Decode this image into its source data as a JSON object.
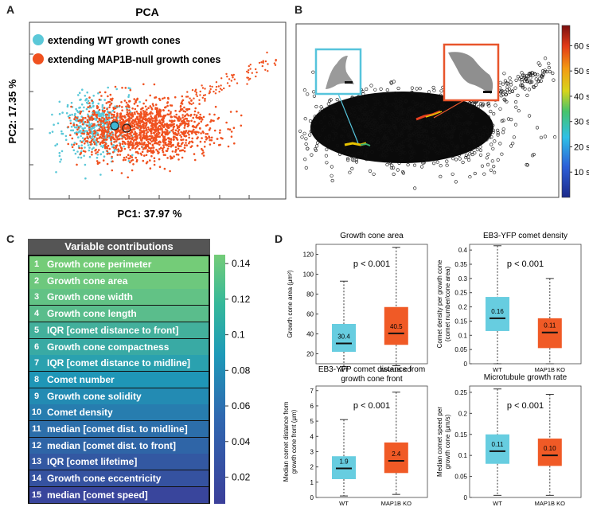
{
  "panels": {
    "a": "A",
    "b": "B",
    "c": "C",
    "d": "D"
  },
  "pca": {
    "title": "PCA",
    "xlabel": "PC1: 37.97 %",
    "ylabel": "PC2: 17.35 %",
    "legend": [
      {
        "label": "extending WT growth cones",
        "color": "#5bc8d8"
      },
      {
        "label": "extending MAP1B-null growth cones",
        "color": "#f0511f"
      }
    ]
  },
  "timebar": {
    "ticks": [
      "60 s",
      "50 s",
      "40 s",
      "30 s",
      "20 s",
      "10 s"
    ],
    "tick_values": [
      60,
      50,
      40,
      30,
      20,
      10
    ],
    "range": [
      0,
      68
    ]
  },
  "contributions": {
    "title": "Variable contributions",
    "rows": [
      {
        "n": "1",
        "label": "Growth cone perimeter",
        "value": 0.145
      },
      {
        "n": "2",
        "label": "Growth cone area",
        "value": 0.14
      },
      {
        "n": "3",
        "label": "Growth cone width",
        "value": 0.133
      },
      {
        "n": "4",
        "label": "Growth cone length",
        "value": 0.127
      },
      {
        "n": "5",
        "label": "IQR [comet distance to front]",
        "value": 0.112
      },
      {
        "n": "6",
        "label": "Growth cone compactness",
        "value": 0.105
      },
      {
        "n": "7",
        "label": "IQR [comet distance to midline]",
        "value": 0.095
      },
      {
        "n": "8",
        "label": "Comet number",
        "value": 0.083
      },
      {
        "n": "9",
        "label": "Growth cone solidity",
        "value": 0.075
      },
      {
        "n": "10",
        "label": "Comet density",
        "value": 0.064
      },
      {
        "n": "11",
        "label": "median [comet dist. to midline]",
        "value": 0.052
      },
      {
        "n": "12",
        "label": "median [comet dist. to front]",
        "value": 0.045
      },
      {
        "n": "13",
        "label": "IQR [comet lifetime]",
        "value": 0.035
      },
      {
        "n": "14",
        "label": "Growth cone eccentricity",
        "value": 0.03
      },
      {
        "n": "15",
        "label": "median [comet speed]",
        "value": 0.02
      }
    ],
    "colorbar_ticks": [
      "0.14",
      "0.12",
      "0.1",
      "0.08",
      "0.06",
      "0.04",
      "0.02"
    ],
    "colorbar_values": [
      0.14,
      0.12,
      0.1,
      0.08,
      0.06,
      0.04,
      0.02
    ],
    "colorbar_range": [
      0.005,
      0.145
    ]
  },
  "chart_data": [
    {
      "type": "box",
      "title": "Growth cone area",
      "ylabel": "Growth cone area (μm²)",
      "categories": [
        "WT",
        "MAP1B KO"
      ],
      "ylim": [
        10,
        130
      ],
      "yticks": [
        "20",
        "40",
        "60",
        "80",
        "100",
        "120"
      ],
      "ytick_values": [
        20,
        40,
        60,
        80,
        100,
        120
      ],
      "annotation": "p < 0.001",
      "boxes": [
        {
          "min": 7,
          "q1": 22,
          "median": 30.4,
          "q3": 50,
          "max": 93,
          "label": "30.4"
        },
        {
          "min": 8,
          "q1": 29,
          "median": 40.5,
          "q3": 67,
          "max": 127,
          "label": "40.5"
        }
      ]
    },
    {
      "type": "box",
      "title": "EB3-YFP comet density",
      "ylabel": "Comet density per growth cone (comet number/cone area)",
      "categories": [
        "WT",
        "MAP1B KO"
      ],
      "ylim": [
        0,
        0.42
      ],
      "yticks": [
        "0",
        "0.05",
        "0.1",
        "0.15",
        "0.2",
        "0.25",
        "0.3",
        "0.35",
        "0.4"
      ],
      "ytick_values": [
        0,
        0.05,
        0.1,
        0.15,
        0.2,
        0.25,
        0.3,
        0.35,
        0.4
      ],
      "annotation": "p < 0.001",
      "boxes": [
        {
          "min": 0,
          "q1": 0.115,
          "median": 0.16,
          "q3": 0.235,
          "max": 0.415,
          "label": "0.16"
        },
        {
          "min": 0,
          "q1": 0.055,
          "median": 0.11,
          "q3": 0.16,
          "max": 0.3,
          "label": "0.11"
        }
      ]
    },
    {
      "type": "box",
      "title": "EB3-YFP comet distance from growth cone front",
      "ylabel": "Median comet distance from growth cone front (μm)",
      "categories": [
        "WT",
        "MAP1B KO"
      ],
      "ylim": [
        0,
        7.3
      ],
      "yticks": [
        "0",
        "1",
        "2",
        "3",
        "4",
        "5",
        "6",
        "7"
      ],
      "ytick_values": [
        0,
        1,
        2,
        3,
        4,
        5,
        6,
        7
      ],
      "annotation": "p < 0.001",
      "boxes": [
        {
          "min": 0.1,
          "q1": 1.2,
          "median": 1.9,
          "q3": 2.7,
          "max": 5.1,
          "label": "1.9"
        },
        {
          "min": 0.2,
          "q1": 1.6,
          "median": 2.4,
          "q3": 3.6,
          "max": 6.9,
          "label": "2.4"
        }
      ]
    },
    {
      "type": "box",
      "title": "Microtubule growth rate",
      "ylabel": "Median comet speed per growth cone (μm/s)",
      "categories": [
        "WT",
        "MAP1B KO"
      ],
      "ylim": [
        0,
        0.265
      ],
      "yticks": [
        "0",
        "0.05",
        "0.1",
        "0.15",
        "0.2",
        "0.25"
      ],
      "ytick_values": [
        0,
        0.05,
        0.1,
        0.15,
        0.2,
        0.25
      ],
      "annotation": "p < 0.001",
      "boxes": [
        {
          "min": 0.005,
          "q1": 0.08,
          "median": 0.11,
          "q3": 0.15,
          "max": 0.258,
          "label": "0.11"
        },
        {
          "min": 0.005,
          "q1": 0.075,
          "median": 0.1,
          "q3": 0.14,
          "max": 0.245,
          "label": "0.10"
        }
      ]
    }
  ]
}
